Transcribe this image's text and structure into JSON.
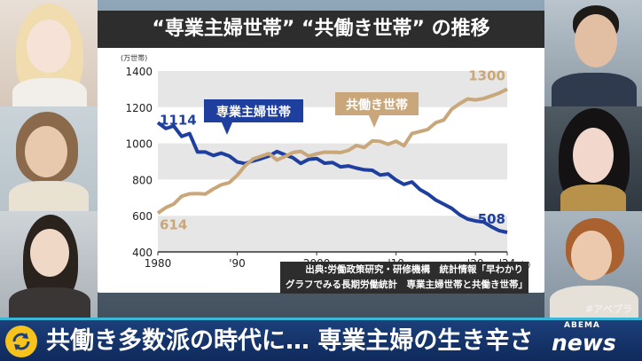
{
  "chart_data": {
    "type": "line",
    "title": "“専業主婦世帯” “共働き世帯” の推移",
    "ylabel": "(万世帯)",
    "xunit": "(年)",
    "ylim": [
      400,
      1400
    ],
    "xlim": [
      1980,
      2024
    ],
    "yticks": [
      "400",
      "600",
      "800",
      "1000",
      "1200",
      "1400"
    ],
    "xticks": [
      {
        "x": 1980,
        "label": "1980"
      },
      {
        "x": 1990,
        "label": "'90"
      },
      {
        "x": 2000,
        "label": "2000"
      },
      {
        "x": 2010,
        "label": "'10"
      },
      {
        "x": 2020,
        "label": "'20"
      },
      {
        "x": 2024,
        "label": "'24"
      }
    ],
    "x": [
      1980,
      1981,
      1982,
      1983,
      1984,
      1985,
      1986,
      1987,
      1988,
      1989,
      1990,
      1991,
      1992,
      1993,
      1994,
      1995,
      1996,
      1997,
      1998,
      1999,
      2000,
      2001,
      2002,
      2003,
      2004,
      2005,
      2006,
      2007,
      2008,
      2009,
      2010,
      2011,
      2012,
      2013,
      2014,
      2015,
      2016,
      2017,
      2018,
      2019,
      2020,
      2021,
      2022,
      2023,
      2024
    ],
    "series": [
      {
        "name": "専業主婦世帯",
        "color": "#1f3f9e",
        "start_label": "1114",
        "end_label": "508",
        "values": [
          1114,
          1082,
          1096,
          1038,
          1054,
          952,
          952,
          933,
          946,
          930,
          897,
          888,
          903,
          915,
          930,
          955,
          937,
          921,
          889,
          912,
          916,
          890,
          894,
          870,
          875,
          863,
          854,
          851,
          825,
          831,
          797,
          773,
          787,
          745,
          720,
          687,
          664,
          641,
          606,
          582,
          571,
          566,
          539,
          517,
          508
        ]
      },
      {
        "name": "共働き世帯",
        "color": "#c9a77a",
        "start_label": "614",
        "end_label": "1300",
        "values": [
          614,
          645,
          664,
          708,
          721,
          722,
          720,
          748,
          771,
          783,
          823,
          877,
          914,
          929,
          943,
          908,
          927,
          949,
          956,
          929,
          942,
          951,
          951,
          949,
          961,
          988,
          977,
          1013,
          1011,
          995,
          1012,
          987,
          1054,
          1065,
          1077,
          1114,
          1129,
          1188,
          1219,
          1245,
          1240,
          1247,
          1262,
          1278,
          1300
        ]
      }
    ]
  },
  "source": {
    "line1": "出典:労働政策研究・研修機構　統計情報「早わかり",
    "line2": "グラフでみる長期労働統計　専業主婦世帯と共働き世帯」"
  },
  "ticker": {
    "headline": "共働き多数派の時代に… 専業主婦の生き辛さ"
  },
  "brand": {
    "abema_small": "ABEMA",
    "abema_news": "news",
    "watermark": "#アベプラ"
  }
}
